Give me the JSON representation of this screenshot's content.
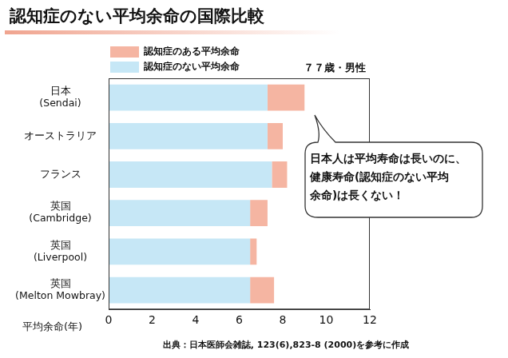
{
  "chart_data": {
    "type": "bar",
    "orientation": "horizontal",
    "stacked": true,
    "title": "認知症のない平均余命の国際比較",
    "subtitle": "７７歳・男性",
    "categories": [
      "日本\n(Sendai)",
      "オーストラリア",
      "フランス",
      "英国\n(Cambridge)",
      "英国\n(Liverpool)",
      "英国\n(Melton Mowbray)"
    ],
    "series": [
      {
        "name": "認知症のない平均余命",
        "color": "#c6e7f6",
        "values": [
          7.3,
          7.3,
          7.5,
          6.5,
          6.5,
          6.5
        ]
      },
      {
        "name": "認知症のある平均余命",
        "color": "#f5b5a2",
        "values": [
          1.7,
          0.7,
          0.7,
          0.8,
          0.3,
          1.1
        ]
      }
    ],
    "x_label": "平均余命(年)",
    "xlim": [
      0,
      12
    ],
    "xticks": [
      0,
      2,
      4,
      6,
      8,
      10,
      12
    ],
    "grid": false,
    "legend": "top",
    "annotation": "日本人は平均寿命は長いのに、\n健康寿命(認知症のない平均\n余命)は長くない！",
    "source": "出典：日本医師会雑誌, 123(6),823-8 (2000)を参考に作成"
  }
}
